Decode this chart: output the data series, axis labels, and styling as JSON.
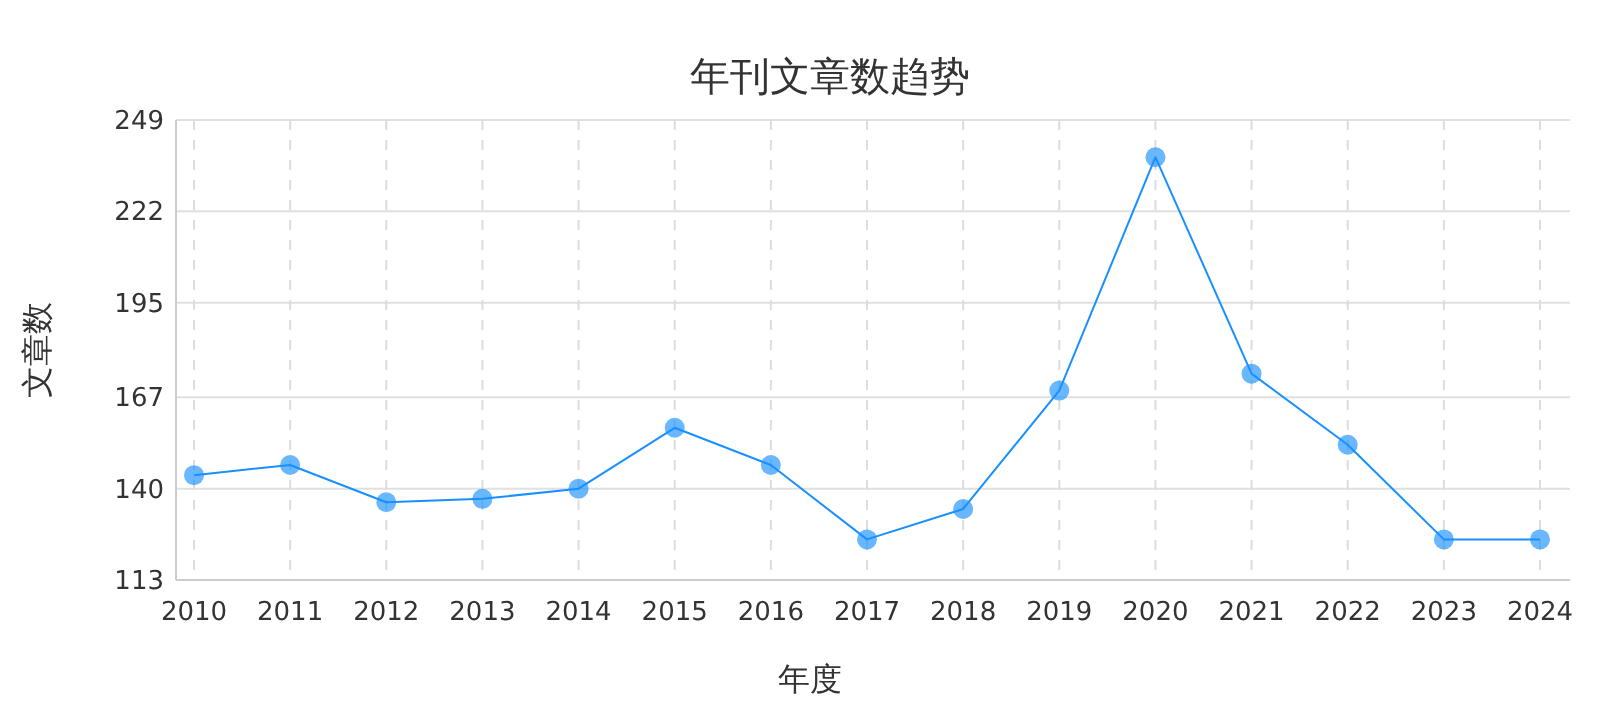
{
  "chart_data": {
    "type": "line",
    "title": "年刊文章数趋势",
    "xlabel": "年度",
    "ylabel": "文章数",
    "categories": [
      "2010",
      "2011",
      "2012",
      "2013",
      "2014",
      "2015",
      "2016",
      "2017",
      "2018",
      "2019",
      "2020",
      "2021",
      "2022",
      "2023",
      "2024"
    ],
    "series": [
      {
        "color": "#1890ff",
        "values": [
          144,
          147,
          136,
          137,
          140,
          158,
          147,
          125,
          134,
          169,
          238,
          174,
          153,
          125,
          125
        ]
      }
    ],
    "ylim": [
      113,
      249
    ],
    "yticks": [
      113,
      140,
      167,
      195,
      222,
      249
    ],
    "grid": true,
    "marker": "circle",
    "line_style": "solid"
  }
}
